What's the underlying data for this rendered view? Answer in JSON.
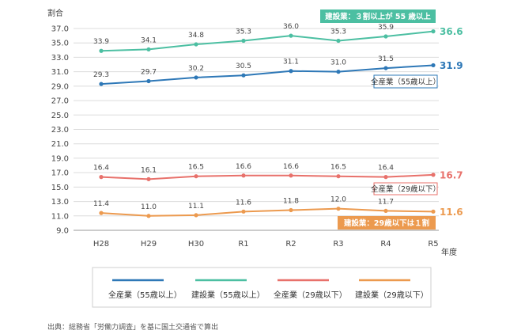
{
  "chart_data": {
    "type": "line",
    "ylabel": "割合",
    "xlabel": "年度",
    "categories": [
      "H28",
      "H29",
      "H30",
      "R1",
      "R2",
      "R3",
      "R4",
      "R5"
    ],
    "ylim": [
      9.0,
      37.0
    ],
    "yticks": [
      "9.0",
      "11.0",
      "13.0",
      "15.0",
      "17.0",
      "19.0",
      "21.0",
      "23.0",
      "25.0",
      "27.0",
      "29.0",
      "31.0",
      "33.0",
      "35.0",
      "37.0"
    ],
    "grid": true,
    "legend_position": "bottom",
    "series": [
      {
        "name": "全産業（55歳以上）",
        "color": "#2e78b7",
        "values": [
          29.3,
          29.7,
          30.2,
          30.5,
          31.1,
          31.0,
          31.5,
          31.9
        ]
      },
      {
        "name": "建設業（55歳以上）",
        "color": "#4cbfa2",
        "values": [
          33.9,
          34.1,
          34.8,
          35.3,
          36.0,
          35.3,
          35.9,
          36.6
        ]
      },
      {
        "name": "全産業（29歳以下）",
        "color": "#e8716b",
        "values": [
          16.4,
          16.1,
          16.5,
          16.6,
          16.6,
          16.5,
          16.4,
          16.7
        ]
      },
      {
        "name": "建設業（29歳以下）",
        "color": "#ec9a4f",
        "values": [
          11.4,
          11.0,
          11.1,
          11.6,
          11.8,
          12.0,
          11.7,
          11.6
        ]
      }
    ],
    "annotations": [
      {
        "text": "建設業：３割以上が 55 歳以上",
        "style": "filled",
        "color": "#4cbfa2"
      },
      {
        "text": "全産業（55歳以上）",
        "style": "outline",
        "color": "#2e78b7"
      },
      {
        "text": "全産業（29歳以下）",
        "style": "outline",
        "color": "#e8716b"
      },
      {
        "text": "建設業：29歳以下は１割",
        "style": "filled",
        "color": "#ec9a4f"
      }
    ]
  },
  "source": "出典：総務省「労働力調査」を基に国土交通省で算出"
}
